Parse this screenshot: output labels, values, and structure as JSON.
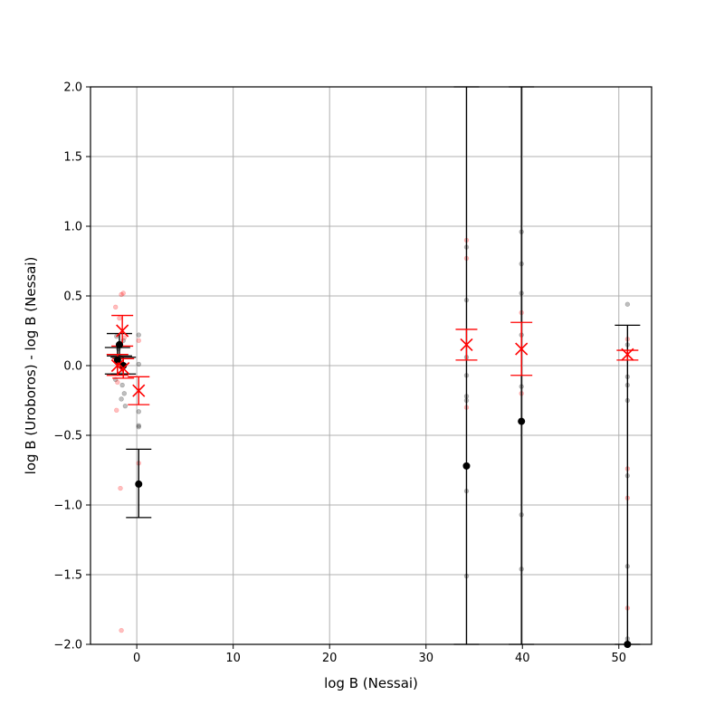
{
  "chart_data": {
    "type": "scatter",
    "xlabel": "log B (Nessai)",
    "ylabel": "log B (Uroboros) - log B (Nessai)",
    "xlim": [
      -4.8,
      53.4
    ],
    "ylim": [
      -2.0,
      2.0
    ],
    "grid": true,
    "x_ticks": [
      "0",
      "10",
      "20",
      "30",
      "40",
      "50"
    ],
    "y_ticks": [
      "2.0",
      "1.5",
      "1.0",
      "0.5",
      "0.0",
      "−0.5",
      "−1.0",
      "−1.5",
      "−2.0"
    ],
    "colors": {
      "black_series": "#000000",
      "red_series": "#ff0000",
      "grid": "#b0b0b0"
    },
    "series": [
      {
        "marker": "o",
        "color": "#000000",
        "points": [
          {
            "x": -1.8,
            "y": 0.15,
            "err_low": 0.08,
            "err_high": 0.08
          },
          {
            "x": -2.0,
            "y": 0.04,
            "err_low": 0.1,
            "err_high": 0.09
          },
          {
            "x": -1.4,
            "y": 0.0,
            "err_low": 0.06,
            "err_high": 0.06
          },
          {
            "x": 0.2,
            "y": -0.85,
            "err_low": 0.24,
            "err_high": 0.25
          },
          {
            "x": 34.2,
            "y": -0.72,
            "err_low": 1.28,
            "err_high": 2.72
          },
          {
            "x": 39.9,
            "y": -0.4,
            "err_low": 1.6,
            "err_high": 2.4
          },
          {
            "x": 50.9,
            "y": -2.0,
            "err_low": 0.0,
            "err_high": 2.29
          }
        ],
        "samples": [
          {
            "x": -2.1,
            "y": 0.21
          },
          {
            "x": -1.9,
            "y": 0.12
          },
          {
            "x": -1.7,
            "y": 0.06
          },
          {
            "x": -1.6,
            "y": -0.05
          },
          {
            "x": -1.5,
            "y": -0.14
          },
          {
            "x": -1.3,
            "y": -0.2
          },
          {
            "x": -1.2,
            "y": -0.29
          },
          {
            "x": -2.2,
            "y": -0.1
          },
          {
            "x": -1.4,
            "y": 0.18
          },
          {
            "x": -1.6,
            "y": -0.24
          },
          {
            "x": 0.2,
            "y": 0.22
          },
          {
            "x": 0.2,
            "y": 0.01
          },
          {
            "x": 0.2,
            "y": -0.43
          },
          {
            "x": 0.2,
            "y": -0.33
          },
          {
            "x": 0.2,
            "y": -0.44
          },
          {
            "x": 34.2,
            "y": 0.85
          },
          {
            "x": 34.2,
            "y": 0.47
          },
          {
            "x": 34.2,
            "y": 0.06
          },
          {
            "x": 34.2,
            "y": -0.07
          },
          {
            "x": 34.2,
            "y": -0.22
          },
          {
            "x": 34.2,
            "y": -0.25
          },
          {
            "x": 34.2,
            "y": -0.9
          },
          {
            "x": 34.2,
            "y": -1.51
          },
          {
            "x": 39.9,
            "y": 0.96
          },
          {
            "x": 39.9,
            "y": 0.73
          },
          {
            "x": 39.9,
            "y": 0.52
          },
          {
            "x": 39.9,
            "y": 0.22
          },
          {
            "x": 39.9,
            "y": -0.15
          },
          {
            "x": 39.9,
            "y": -1.07
          },
          {
            "x": 39.9,
            "y": -1.46
          },
          {
            "x": 50.9,
            "y": 0.44
          },
          {
            "x": 50.9,
            "y": 0.15
          },
          {
            "x": 50.9,
            "y": -0.08
          },
          {
            "x": 50.9,
            "y": -0.14
          },
          {
            "x": 50.9,
            "y": -0.25
          },
          {
            "x": 50.9,
            "y": -0.79
          },
          {
            "x": 50.9,
            "y": -1.44
          },
          {
            "x": 50.9,
            "y": -1.96
          }
        ]
      },
      {
        "marker": "x",
        "color": "#ff0000",
        "points": [
          {
            "x": -1.5,
            "y": 0.25,
            "err_low": 0.11,
            "err_high": 0.11
          },
          {
            "x": -2.0,
            "y": 0.0,
            "err_low": 0.07,
            "err_high": 0.08
          },
          {
            "x": -1.4,
            "y": -0.02,
            "err_low": 0.07,
            "err_high": 0.07
          },
          {
            "x": 0.2,
            "y": -0.18,
            "err_low": 0.1,
            "err_high": 0.1
          },
          {
            "x": 34.2,
            "y": 0.15,
            "err_low": 0.11,
            "err_high": 0.11
          },
          {
            "x": 39.9,
            "y": 0.12,
            "err_low": 0.19,
            "err_high": 0.19
          },
          {
            "x": 50.9,
            "y": 0.08,
            "err_low": 0.04,
            "err_high": 0.03
          }
        ],
        "samples": [
          {
            "x": -1.6,
            "y": 0.51
          },
          {
            "x": -1.4,
            "y": 0.52
          },
          {
            "x": -2.2,
            "y": 0.42
          },
          {
            "x": -1.8,
            "y": 0.34
          },
          {
            "x": -1.3,
            "y": 0.2
          },
          {
            "x": -2.0,
            "y": -0.12
          },
          {
            "x": -2.1,
            "y": -0.32
          },
          {
            "x": -1.7,
            "y": -0.88
          },
          {
            "x": -1.6,
            "y": -1.9
          },
          {
            "x": 0.2,
            "y": 0.18
          },
          {
            "x": 0.2,
            "y": -0.7
          },
          {
            "x": 34.2,
            "y": 0.9
          },
          {
            "x": 34.2,
            "y": 0.77
          },
          {
            "x": 34.2,
            "y": -0.3
          },
          {
            "x": 39.9,
            "y": 0.38
          },
          {
            "x": 39.9,
            "y": -0.2
          },
          {
            "x": 50.9,
            "y": 0.19
          },
          {
            "x": 50.9,
            "y": -0.74
          },
          {
            "x": 50.9,
            "y": -0.95
          },
          {
            "x": 50.9,
            "y": -1.74
          }
        ]
      }
    ]
  }
}
